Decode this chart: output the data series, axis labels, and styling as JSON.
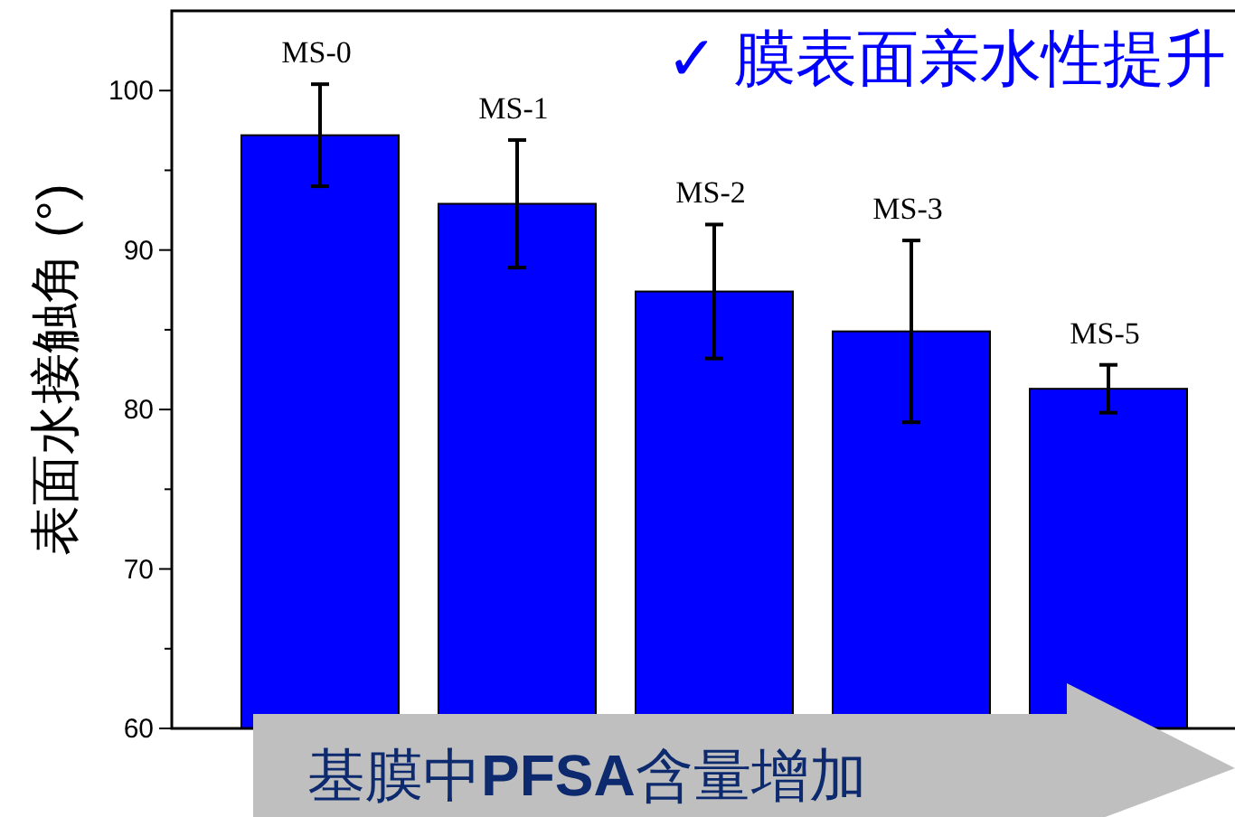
{
  "chart_data": {
    "type": "bar",
    "ylabel": "表面水接触角 (°)",
    "categories": [
      "MS-0",
      "MS-1",
      "MS-2",
      "MS-3",
      "MS-5"
    ],
    "values": [
      97.2,
      92.9,
      87.4,
      84.9,
      81.3
    ],
    "errors": [
      3.2,
      4,
      4.2,
      5.7,
      1.5
    ],
    "color": "#0000ff",
    "ylim": [
      60,
      105
    ],
    "yticks": [
      60,
      70,
      80,
      90,
      100
    ],
    "annotations": [
      "✓ 膜表面亲水性提升",
      "基膜中**PFSA**含量增加"
    ]
  }
}
